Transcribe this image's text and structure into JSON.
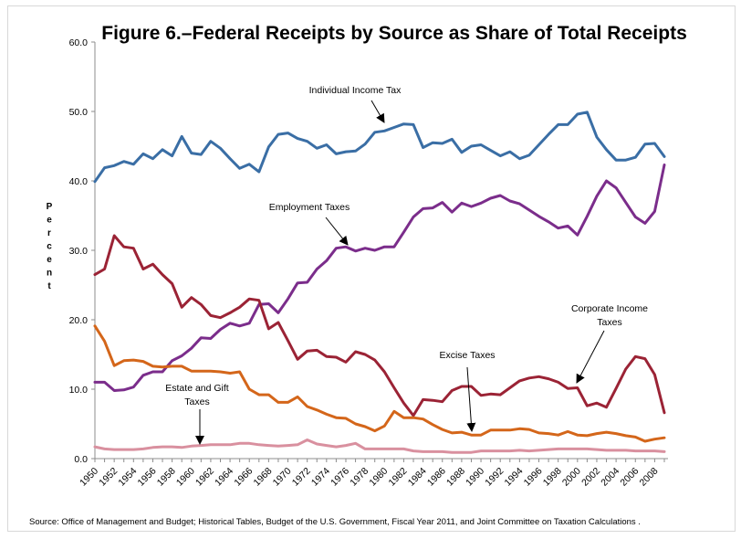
{
  "chart_data": {
    "type": "line",
    "title": "Figure 6.–Federal Receipts by Source as Share of Total Receipts",
    "ylabel": "Percent",
    "xlabel": "",
    "ylim": [
      0,
      60
    ],
    "yticks": [
      "0.0",
      "10.0",
      "20.0",
      "30.0",
      "40.0",
      "50.0",
      "60.0"
    ],
    "xticks": [
      "1950",
      "1952",
      "1954",
      "1956",
      "1958",
      "1960",
      "1962",
      "1964",
      "1966",
      "1968",
      "1970",
      "1972",
      "1974",
      "1976",
      "1978",
      "1980",
      "1982",
      "1984",
      "1986",
      "1988",
      "1990",
      "1992",
      "1994",
      "1996",
      "1998",
      "2000",
      "2002",
      "2004",
      "2006",
      "2008"
    ],
    "grid": false,
    "legend": "none",
    "x": [
      1950,
      1951,
      1952,
      1953,
      1954,
      1955,
      1956,
      1957,
      1958,
      1959,
      1960,
      1961,
      1962,
      1963,
      1964,
      1965,
      1966,
      1967,
      1968,
      1969,
      1970,
      1971,
      1972,
      1973,
      1974,
      1975,
      1976,
      1977,
      1978,
      1979,
      1980,
      1981,
      1982,
      1983,
      1984,
      1985,
      1986,
      1987,
      1988,
      1989,
      1990,
      1991,
      1992,
      1993,
      1994,
      1995,
      1996,
      1997,
      1998,
      1999,
      2000,
      2001,
      2002,
      2003,
      2004,
      2005,
      2006,
      2007,
      2008,
      2009
    ],
    "series": [
      {
        "color": "#3a6ea5",
        "values": [
          39.9,
          41.9,
          42.2,
          42.8,
          42.4,
          43.9,
          43.2,
          44.5,
          43.6,
          46.4,
          44.0,
          43.8,
          45.7,
          44.7,
          43.2,
          41.8,
          42.4,
          41.3,
          44.9,
          46.7,
          46.9,
          46.1,
          45.7,
          44.7,
          45.2,
          43.9,
          44.2,
          44.3,
          45.3,
          47.0,
          47.2,
          47.7,
          48.2,
          48.1,
          44.8,
          45.5,
          45.4,
          46.0,
          44.1,
          45.0,
          45.2,
          44.4,
          43.6,
          44.2,
          43.2,
          43.7,
          45.2,
          46.7,
          48.1,
          48.1,
          49.6,
          49.9,
          46.3,
          44.5,
          43.0,
          43.0,
          43.4,
          45.3,
          45.4,
          43.5
        ]
      },
      {
        "color": "#7b2d8b",
        "values": [
          11.0,
          11.0,
          9.8,
          9.9,
          10.3,
          12.0,
          12.5,
          12.5,
          14.1,
          14.8,
          15.9,
          17.4,
          17.3,
          18.6,
          19.5,
          19.1,
          19.5,
          22.2,
          22.3,
          21.0,
          23.0,
          25.3,
          25.4,
          27.3,
          28.5,
          30.3,
          30.5,
          29.9,
          30.3,
          30.0,
          30.5,
          30.5,
          32.6,
          34.8,
          36.0,
          36.1,
          36.9,
          35.5,
          36.8,
          36.3,
          36.8,
          37.5,
          37.9,
          37.1,
          36.7,
          35.8,
          34.9,
          34.1,
          33.2,
          33.5,
          32.2,
          34.9,
          37.8,
          40.0,
          39.0,
          36.9,
          34.8,
          33.9,
          35.6,
          42.3
        ]
      },
      {
        "color": "#9b2335",
        "values": [
          26.5,
          27.3,
          32.1,
          30.5,
          30.3,
          27.3,
          28.0,
          26.5,
          25.2,
          21.8,
          23.2,
          22.2,
          20.6,
          20.3,
          21.0,
          21.8,
          23.0,
          22.8,
          18.7,
          19.6,
          17.0,
          14.3,
          15.5,
          15.6,
          14.7,
          14.6,
          13.9,
          15.4,
          15.0,
          14.2,
          12.5,
          10.2,
          8.0,
          6.2,
          8.5,
          8.4,
          8.2,
          9.8,
          10.4,
          10.4,
          9.1,
          9.3,
          9.2,
          10.2,
          11.2,
          11.6,
          11.8,
          11.5,
          11.0,
          10.1,
          10.2,
          7.6,
          8.0,
          7.4,
          10.1,
          12.9,
          14.7,
          14.4,
          12.1,
          6.6
        ]
      },
      {
        "color": "#d4661a",
        "values": [
          19.1,
          16.9,
          13.4,
          14.1,
          14.2,
          14.0,
          13.3,
          13.2,
          13.3,
          13.3,
          12.6,
          12.6,
          12.6,
          12.5,
          12.3,
          12.5,
          10.0,
          9.2,
          9.2,
          8.1,
          8.1,
          8.9,
          7.5,
          7.0,
          6.4,
          5.9,
          5.8,
          5.0,
          4.6,
          4.0,
          4.7,
          6.8,
          5.9,
          5.9,
          5.7,
          4.9,
          4.2,
          3.7,
          3.8,
          3.4,
          3.4,
          4.1,
          4.1,
          4.1,
          4.3,
          4.2,
          3.7,
          3.6,
          3.4,
          3.9,
          3.4,
          3.3,
          3.6,
          3.8,
          3.6,
          3.3,
          3.1,
          2.5,
          2.8,
          3.0
        ]
      },
      {
        "color": "#d9909f",
        "values": [
          1.7,
          1.4,
          1.3,
          1.3,
          1.3,
          1.4,
          1.6,
          1.7,
          1.7,
          1.6,
          1.8,
          1.9,
          2.0,
          2.0,
          2.0,
          2.2,
          2.2,
          2.0,
          1.9,
          1.8,
          1.9,
          2.0,
          2.7,
          2.1,
          1.9,
          1.7,
          1.9,
          2.2,
          1.4,
          1.4,
          1.4,
          1.4,
          1.4,
          1.1,
          1.0,
          1.0,
          1.0,
          0.9,
          0.9,
          0.9,
          1.1,
          1.1,
          1.1,
          1.1,
          1.2,
          1.1,
          1.2,
          1.3,
          1.4,
          1.4,
          1.4,
          1.4,
          1.3,
          1.2,
          1.2,
          1.2,
          1.1,
          1.1,
          1.1,
          1.0
        ]
      }
    ],
    "annotations": [
      {
        "lines": [
          "Individual Income Tax"
        ]
      },
      {
        "lines": [
          "Employment Taxes"
        ]
      },
      {
        "lines": [
          "Corporate Income",
          "Taxes"
        ]
      },
      {
        "lines": [
          "Excise Taxes"
        ]
      },
      {
        "lines": [
          "Estate and Gift",
          "Taxes"
        ]
      }
    ],
    "source": "Source:  Office of Management and Budget; Historical Tables, Budget of the  U.S. Government, Fiscal Year 2011, and Joint Committee on Taxation Calculations ."
  }
}
